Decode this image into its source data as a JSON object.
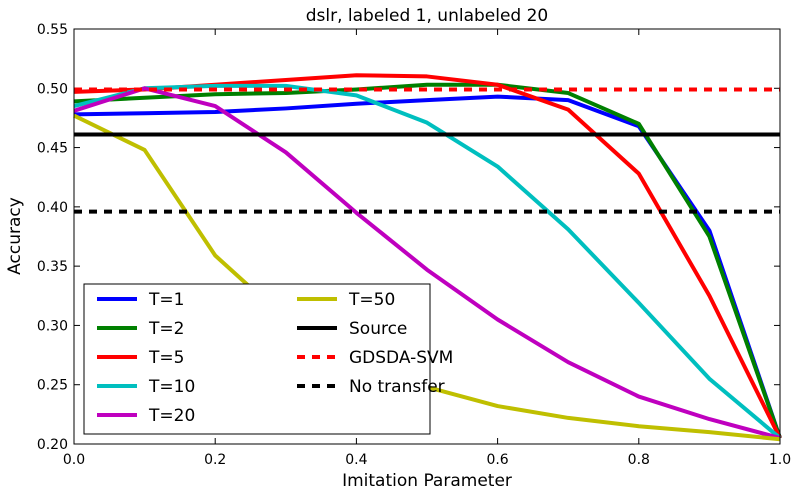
{
  "chart_data": {
    "type": "line",
    "title": "dslr, labeled 1, unlabeled 20",
    "xlabel": "Imitation Parameter",
    "ylabel": "Accuracy",
    "xlim": [
      0.0,
      1.0
    ],
    "ylim": [
      0.2,
      0.55
    ],
    "xticks": [
      "0.0",
      "0.2",
      "0.4",
      "0.6",
      "0.8",
      "1.0"
    ],
    "yticks": [
      "0.20",
      "0.25",
      "0.30",
      "0.35",
      "0.40",
      "0.45",
      "0.50",
      "0.55"
    ],
    "grid": false,
    "legend_position": "lower-left",
    "legend_columns": 2,
    "x": [
      0.0,
      0.1,
      0.2,
      0.3,
      0.4,
      0.5,
      0.6,
      0.7,
      0.8,
      0.9,
      1.0
    ],
    "series": [
      {
        "name": "T=1",
        "color": "#0000ff",
        "style": "solid",
        "values": [
          0.478,
          0.479,
          0.48,
          0.483,
          0.487,
          0.49,
          0.493,
          0.49,
          0.468,
          0.38,
          0.205
        ]
      },
      {
        "name": "T=2",
        "color": "#008000",
        "style": "solid",
        "values": [
          0.489,
          0.492,
          0.495,
          0.496,
          0.499,
          0.503,
          0.503,
          0.496,
          0.47,
          0.375,
          0.205
        ]
      },
      {
        "name": "T=5",
        "color": "#ff0000",
        "style": "solid",
        "values": [
          0.497,
          0.499,
          0.503,
          0.507,
          0.511,
          0.51,
          0.503,
          0.482,
          0.428,
          0.325,
          0.205
        ]
      },
      {
        "name": "T=10",
        "color": "#00bfbf",
        "style": "solid",
        "values": [
          0.485,
          0.5,
          0.502,
          0.502,
          0.494,
          0.471,
          0.434,
          0.381,
          0.319,
          0.255,
          0.205
        ]
      },
      {
        "name": "T=20",
        "color": "#bf00bf",
        "style": "solid",
        "values": [
          0.481,
          0.5,
          0.485,
          0.446,
          0.395,
          0.347,
          0.305,
          0.269,
          0.24,
          0.221,
          0.205
        ]
      },
      {
        "name": "T=50",
        "color": "#bfbf00",
        "style": "solid",
        "values": [
          0.477,
          0.448,
          0.359,
          0.305,
          0.272,
          0.248,
          0.232,
          0.222,
          0.215,
          0.21,
          0.204
        ]
      },
      {
        "name": "Source",
        "color": "#000000",
        "style": "solid",
        "values": [
          0.461,
          0.461,
          0.461,
          0.461,
          0.461,
          0.461,
          0.461,
          0.461,
          0.461,
          0.461,
          0.461
        ]
      },
      {
        "name": "GDSDA-SVM",
        "color": "#ff0000",
        "style": "dashed",
        "values": [
          0.499,
          0.499,
          0.499,
          0.499,
          0.499,
          0.499,
          0.499,
          0.499,
          0.499,
          0.499,
          0.499
        ]
      },
      {
        "name": "No transfer",
        "color": "#000000",
        "style": "dashed",
        "values": [
          0.396,
          0.396,
          0.396,
          0.396,
          0.396,
          0.396,
          0.396,
          0.396,
          0.396,
          0.396,
          0.396
        ]
      }
    ]
  }
}
